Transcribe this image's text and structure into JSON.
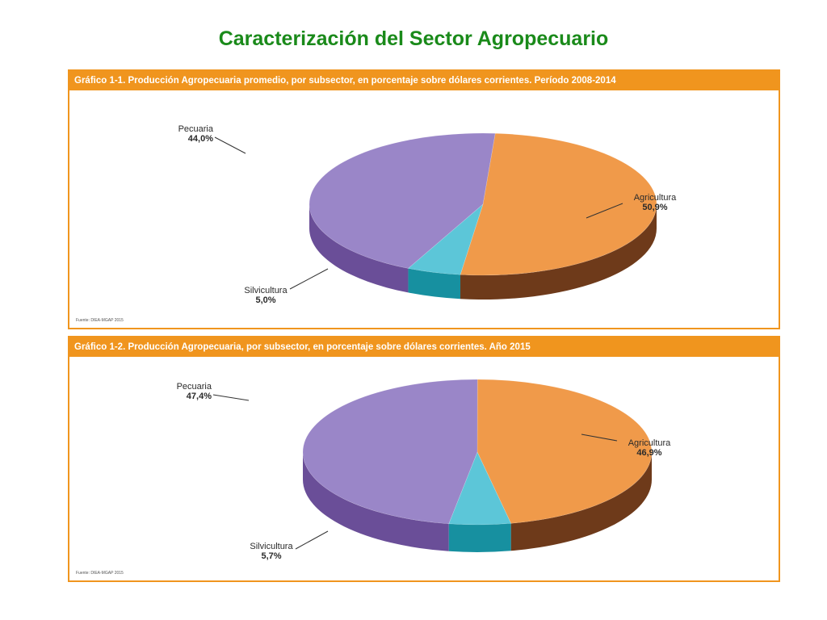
{
  "slide": {
    "title": "Caracterización del Sector Agropecuario"
  },
  "panels": [
    {
      "header": "Gráfico 1-1. Producción Agropecuaria promedio, por subsector, en porcentaje sobre dólares corrientes. Período 2008-2014",
      "source": "Fuente: DIEA-MGAP 2015"
    },
    {
      "header": "Gráfico 1-2. Producción Agropecuaria, por subsector, en porcentaje sobre dólares corrientes. Año 2015",
      "source": "Fuente: DIEA-MGAP 2015"
    }
  ],
  "colors": {
    "accent": "#f0951e",
    "title_green": "#1a8a1a",
    "agricultura_top": "#f09a4a",
    "agricultura_side": "#6e3a1a",
    "pecuaria_top": "#9a86c8",
    "pecuaria_side": "#6a4e98",
    "silvicultura_top": "#5cc6d8",
    "silvicultura_side": "#1790a0"
  },
  "chart_data": [
    {
      "type": "pie",
      "title": "Gráfico 1-1. Producción Agropecuaria promedio, por subsector, en porcentaje sobre dólares corrientes. Período 2008-2014",
      "slices": [
        {
          "label": "Agricultura",
          "value": 50.9,
          "value_label": "50,9%",
          "color": "#f09a4a"
        },
        {
          "label": "Silvicultura",
          "value": 5.0,
          "value_label": "5,0%",
          "color": "#5cc6d8"
        },
        {
          "label": "Pecuaria",
          "value": 44.0,
          "value_label": "44,0%",
          "color": "#9a86c8"
        }
      ]
    },
    {
      "type": "pie",
      "title": "Gráfico 1-2. Producción Agropecuaria, por subsector, en porcentaje sobre dólares corrientes. Año 2015",
      "slices": [
        {
          "label": "Agricultura",
          "value": 46.9,
          "value_label": "46,9%",
          "color": "#f09a4a"
        },
        {
          "label": "Silvicultura",
          "value": 5.7,
          "value_label": "5,7%",
          "color": "#5cc6d8"
        },
        {
          "label": "Pecuaria",
          "value": 47.4,
          "value_label": "47,4%",
          "color": "#9a86c8"
        }
      ]
    }
  ]
}
